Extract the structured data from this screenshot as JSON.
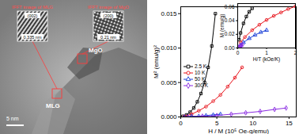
{
  "image": {
    "ifft": [
      {
        "title": "IFFT image of MLG",
        "plane": "(002)",
        "spacing": "0.335 nm",
        "region": "MLG"
      },
      {
        "title": "IFFT image of MgO",
        "plane": "(200)",
        "spacing": "0.21 nm",
        "region": "MgO"
      }
    ],
    "scale_bar": "5 nm"
  },
  "chart_data": [
    {
      "type": "line",
      "xlabel": "H / M (10⁵ Oe-g/emu)",
      "ylabel": "M² (emu/g)²",
      "xlim": [
        0,
        16
      ],
      "xticks": [
        0,
        5,
        10,
        15
      ],
      "ylim": [
        0,
        0.016
      ],
      "yticks": [
        {
          "value": 0,
          "label": "0.000"
        },
        {
          "value": 0.005,
          "label": "0.005"
        },
        {
          "value": 0.01,
          "label": "0.010"
        },
        {
          "value": 0.015,
          "label": "0.015"
        }
      ],
      "legend": "left",
      "series": [
        {
          "name": "2.5 K",
          "color": "#000000",
          "marker": "square",
          "x": [
            0.3,
            0.8,
            1.3,
            1.8,
            2.3,
            2.8,
            3.3,
            3.8,
            4.3,
            4.8
          ],
          "values": [
            0.0001,
            0.0003,
            0.0007,
            0.0013,
            0.0022,
            0.0034,
            0.005,
            0.0072,
            0.0103,
            0.015
          ]
        },
        {
          "name": "10 K",
          "color": "#e8141c",
          "marker": "circle",
          "x": [
            0.5,
            1.5,
            2.5,
            3.5,
            4.5,
            5.5,
            6.5,
            7.5,
            8.5
          ],
          "values": [
            0.0001,
            0.0004,
            0.0009,
            0.0015,
            0.0023,
            0.0032,
            0.0044,
            0.0057,
            0.0072
          ]
        },
        {
          "name": "50 K",
          "color": "#1a3fd8",
          "marker": "triangle",
          "x": [
            0.5,
            1.5,
            2.5,
            3.5,
            4.5,
            5.5
          ],
          "values": [
            0,
            0.0001,
            0.0001,
            0.0002,
            0.0003,
            0.0004
          ]
        },
        {
          "name": "300 K",
          "color": "#8a2be2",
          "marker": "diamond",
          "x": [
            1,
            3,
            5,
            7,
            9,
            11,
            13,
            14.6
          ],
          "values": [
            0,
            0.0001,
            0.0002,
            0.0004,
            0.0006,
            0.0008,
            0.0011,
            0.0013
          ]
        }
      ]
    },
    {
      "type": "line",
      "xlabel": "H/T (kOe/K)",
      "ylabel": "M (emu/g)",
      "xlim": [
        0,
        2
      ],
      "xticks": [
        0,
        1,
        2
      ],
      "ylim": [
        0,
        0.065
      ],
      "yticks": [
        {
          "value": 0,
          "label": "0.00"
        },
        {
          "value": 0.02,
          "label": "0.02"
        },
        {
          "value": 0.04,
          "label": "0.04"
        },
        {
          "value": 0.06,
          "label": "0.06"
        }
      ],
      "series": [
        {
          "name": "2.5 K",
          "color": "#000000",
          "marker": "square",
          "x": [
            0.05,
            0.1,
            0.2,
            0.3,
            0.4,
            0.5
          ],
          "values": [
            0.012,
            0.022,
            0.036,
            0.046,
            0.053,
            0.058
          ]
        },
        {
          "name": "10 K",
          "color": "#e8141c",
          "marker": "circle",
          "x": [
            0.1,
            0.25,
            0.5,
            0.75,
            1,
            1.25,
            1.5,
            1.75,
            2
          ],
          "values": [
            0.008,
            0.016,
            0.026,
            0.034,
            0.041,
            0.047,
            0.052,
            0.057,
            0.061
          ]
        },
        {
          "name": "50 K",
          "color": "#1a3fd8",
          "marker": "triangle",
          "x": [
            0.1,
            0.2,
            0.4,
            0.6,
            0.8,
            1
          ],
          "values": [
            0.004,
            0.008,
            0.014,
            0.019,
            0.023,
            0.026
          ]
        },
        {
          "name": "300 K",
          "color": "#8a2be2",
          "marker": "diamond",
          "x": [
            0.03,
            0.07,
            0.1,
            0.13,
            0.17
          ],
          "values": [
            0.001,
            0.002,
            0.003,
            0.004,
            0.005
          ]
        }
      ]
    }
  ]
}
